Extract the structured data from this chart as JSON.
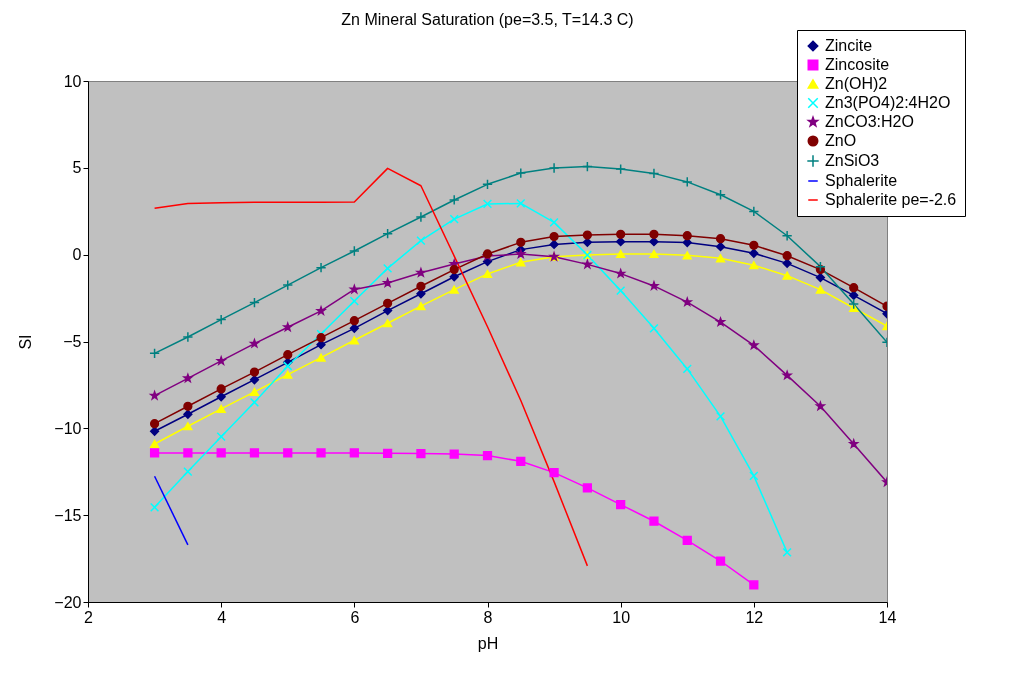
{
  "chart_data": {
    "type": "line",
    "title": "Zn Mineral Saturation (pe=3.5, T=14.3 C)",
    "xlabel": "pH",
    "ylabel": "SI",
    "x": [
      3,
      3.5,
      4,
      4.5,
      5,
      5.5,
      6,
      6.5,
      7,
      7.5,
      8,
      8.5,
      9,
      9.5,
      10,
      10.5,
      11,
      11.5,
      12,
      12.5,
      13,
      13.5,
      14
    ],
    "series": [
      {
        "name": "Zincite",
        "color": "#000080",
        "marker": "diamond",
        "values": [
          -10.17,
          -9.19,
          -8.18,
          -7.2,
          -6.2,
          -5.18,
          -4.24,
          -3.22,
          -2.25,
          -1.27,
          -0.4,
          0.29,
          0.59,
          0.71,
          0.75,
          0.75,
          0.7,
          0.46,
          0.08,
          -0.5,
          -1.32,
          -2.34,
          -3.4
        ]
      },
      {
        "name": "Zincosite",
        "color": "#ff00ff",
        "marker": "square",
        "values": [
          -11.42,
          -11.42,
          -11.42,
          -11.42,
          -11.42,
          -11.42,
          -11.42,
          -11.44,
          -11.45,
          -11.48,
          -11.57,
          -11.9,
          -12.55,
          -13.43,
          -14.39,
          -15.35,
          -16.45,
          -17.64,
          -19.02,
          null,
          null,
          null,
          null
        ]
      },
      {
        "name": "Zn(OH)2",
        "color": "#ffff00",
        "marker": "triangle",
        "values": [
          -10.9,
          -9.88,
          -8.88,
          -7.9,
          -6.91,
          -5.93,
          -4.93,
          -3.95,
          -2.96,
          -2.01,
          -1.11,
          -0.44,
          -0.12,
          -0.02,
          0.04,
          0.04,
          -0.04,
          -0.21,
          -0.61,
          -1.21,
          -2.01,
          -3.07,
          -4.11
        ]
      },
      {
        "name": "Zn3(PO4)2:4H2O",
        "color": "#00ffff",
        "marker": "cross",
        "values": [
          -14.55,
          -12.49,
          -10.48,
          -8.5,
          -6.41,
          -4.57,
          -2.67,
          -0.79,
          0.81,
          2.05,
          2.92,
          2.95,
          1.86,
          -0.02,
          -2.07,
          -4.24,
          -6.58,
          -9.31,
          -12.74,
          -17.14,
          null,
          null,
          null
        ]
      },
      {
        "name": "ZnCO3:H2O",
        "color": "#800080",
        "marker": "star",
        "values": [
          -8.12,
          -7.12,
          -6.12,
          -5.12,
          -4.18,
          -3.24,
          -2.0,
          -1.63,
          -1.04,
          -0.54,
          -0.08,
          0.04,
          -0.12,
          -0.56,
          -1.09,
          -1.8,
          -2.73,
          -3.88,
          -5.22,
          -6.95,
          -8.73,
          -10.9,
          -13.1
        ]
      },
      {
        "name": "ZnO",
        "color": "#800000",
        "marker": "circle",
        "values": [
          -9.73,
          -8.73,
          -7.73,
          -6.76,
          -5.76,
          -4.78,
          -3.8,
          -2.8,
          -1.82,
          -0.86,
          0.04,
          0.71,
          1.04,
          1.13,
          1.17,
          1.17,
          1.09,
          0.92,
          0.54,
          -0.06,
          -0.86,
          -1.9,
          -2.97
        ]
      },
      {
        "name": "ZnSiO3",
        "color": "#008080",
        "marker": "plus",
        "values": [
          -5.68,
          -4.74,
          -3.74,
          -2.76,
          -1.75,
          -0.75,
          0.21,
          1.21,
          2.17,
          3.15,
          4.05,
          4.7,
          4.99,
          5.07,
          4.93,
          4.68,
          4.19,
          3.45,
          2.49,
          1.09,
          -0.69,
          -2.84,
          -5.05
        ]
      },
      {
        "name": "Sphalerite",
        "color": "#0000ff",
        "marker": "none",
        "values": [
          -12.76,
          -16.71,
          null,
          null,
          null,
          null,
          null,
          null,
          null,
          null,
          null,
          null,
          null,
          null,
          null,
          null,
          null,
          null,
          null,
          null,
          null,
          null,
          null
        ]
      },
      {
        "name": "Sphalerite pe=-2.6",
        "color": "#ff0000",
        "marker": "none",
        "values": [
          2.67,
          2.95,
          2.99,
          3.02,
          3.02,
          3.02,
          3.03,
          4.97,
          3.97,
          -0.08,
          -4.15,
          -8.4,
          -13.07,
          -17.92,
          null,
          null,
          null,
          null,
          null,
          null,
          null,
          null,
          null
        ]
      }
    ],
    "xlim": [
      2,
      14
    ],
    "xticks": [
      2,
      4,
      6,
      8,
      10,
      12,
      14
    ],
    "ylim": [
      -20,
      10
    ],
    "yticks": [
      -20,
      -15,
      -10,
      -5,
      0,
      5,
      10
    ],
    "grid": false,
    "legend": "top right"
  }
}
